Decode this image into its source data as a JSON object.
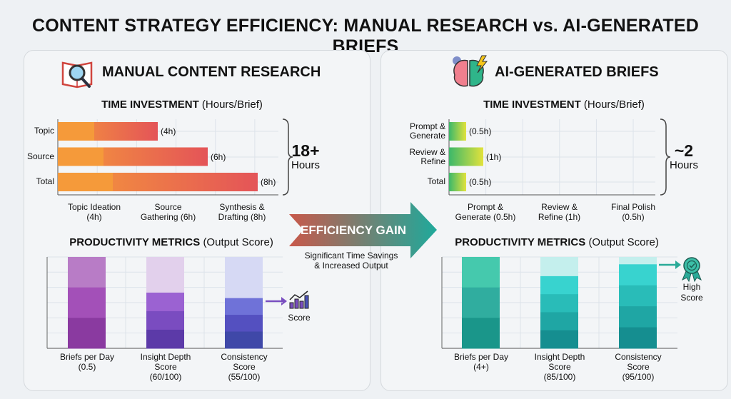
{
  "title": "CONTENT STRATEGY EFFICIENCY: MANUAL RESEARCH vs. AI-GENERATED BRIEFS",
  "middle": {
    "arrow_label": "EFFICIENCY GAIN",
    "subtext_line1": "Significant Time Savings",
    "subtext_line2": "& Increased Output",
    "colors": [
      "#c9584a",
      "#1fa99b"
    ]
  },
  "manual": {
    "heading": "MANUAL CONTENT RESEARCH",
    "icon": "book-magnifier-icon",
    "total_big": "18+",
    "total_unit": "Hours",
    "score_icon_label": "Score"
  },
  "ai": {
    "heading": "AI-GENERATED BRIEFS",
    "icon": "brain-gear-lightning-icon",
    "total_big": "~2",
    "total_unit": "Hours",
    "score_icon_label_1": "High",
    "score_icon_label_2": "Score"
  },
  "chart_data": [
    {
      "type": "bar",
      "orientation": "horizontal",
      "title": "TIME INVESTMENT",
      "title_suffix": "(Hours/Brief)",
      "categories": [
        "Topic",
        "Source",
        "Total"
      ],
      "values": [
        4,
        6,
        8
      ],
      "value_labels": [
        "(4h)",
        "(6h)",
        "(8h)"
      ],
      "x_labels": [
        [
          "Topic Ideation",
          "(4h)"
        ],
        [
          "Source",
          "Gathering (6h)"
        ],
        [
          "Synthesis &",
          "Drafting (8h)"
        ]
      ],
      "colors": [
        "#f59a3a",
        "#e45458"
      ],
      "grid": true
    },
    {
      "type": "bar",
      "title": "PRODUCTIVITY METRICS",
      "title_suffix": "(Output Score)",
      "categories": [
        [
          "Briefs per Day",
          "(0.5)"
        ],
        [
          "Insight Depth",
          "Score",
          "(60/100)"
        ],
        [
          "Consistency",
          "Score",
          "(55/100)"
        ]
      ],
      "values": [
        0.5,
        60,
        55
      ],
      "fill_pct": [
        100,
        61,
        55
      ],
      "colors": [
        "#8a3aa0",
        "#6a47b8",
        "#4a52b8"
      ],
      "grid": true
    },
    {
      "type": "bar",
      "orientation": "horizontal",
      "title": "TIME INVESTMENT",
      "title_suffix": "(Hours/Brief)",
      "categories": [
        [
          "Prompt &",
          "Generate"
        ],
        [
          "Review &",
          "Refine"
        ],
        [
          "Total"
        ]
      ],
      "values": [
        0.5,
        1,
        0.5
      ],
      "value_labels": [
        "(0.5h)",
        "(1h)",
        "(0.5h)"
      ],
      "x_labels": [
        [
          "Prompt &",
          "Generate (0.5h)"
        ],
        [
          "Review &",
          "Refine (1h)"
        ],
        [
          "Final Polish",
          "(0.5h)"
        ]
      ],
      "colors": [
        "#3cb86a",
        "#e2e23c"
      ],
      "grid": true
    },
    {
      "type": "bar",
      "title": "PRODUCTIVITY METRICS",
      "title_suffix": "(Output Score)",
      "categories": [
        [
          "Briefs per Day",
          "(4+)"
        ],
        [
          "Insight Depth",
          "Score",
          "(85/100)"
        ],
        [
          "Consistency",
          "Score",
          "(95/100)"
        ]
      ],
      "values": [
        4,
        85,
        95
      ],
      "fill_pct": [
        100,
        79,
        92
      ],
      "colors": [
        "#1a9a8c",
        "#2cc8c0"
      ],
      "grid": true
    }
  ]
}
